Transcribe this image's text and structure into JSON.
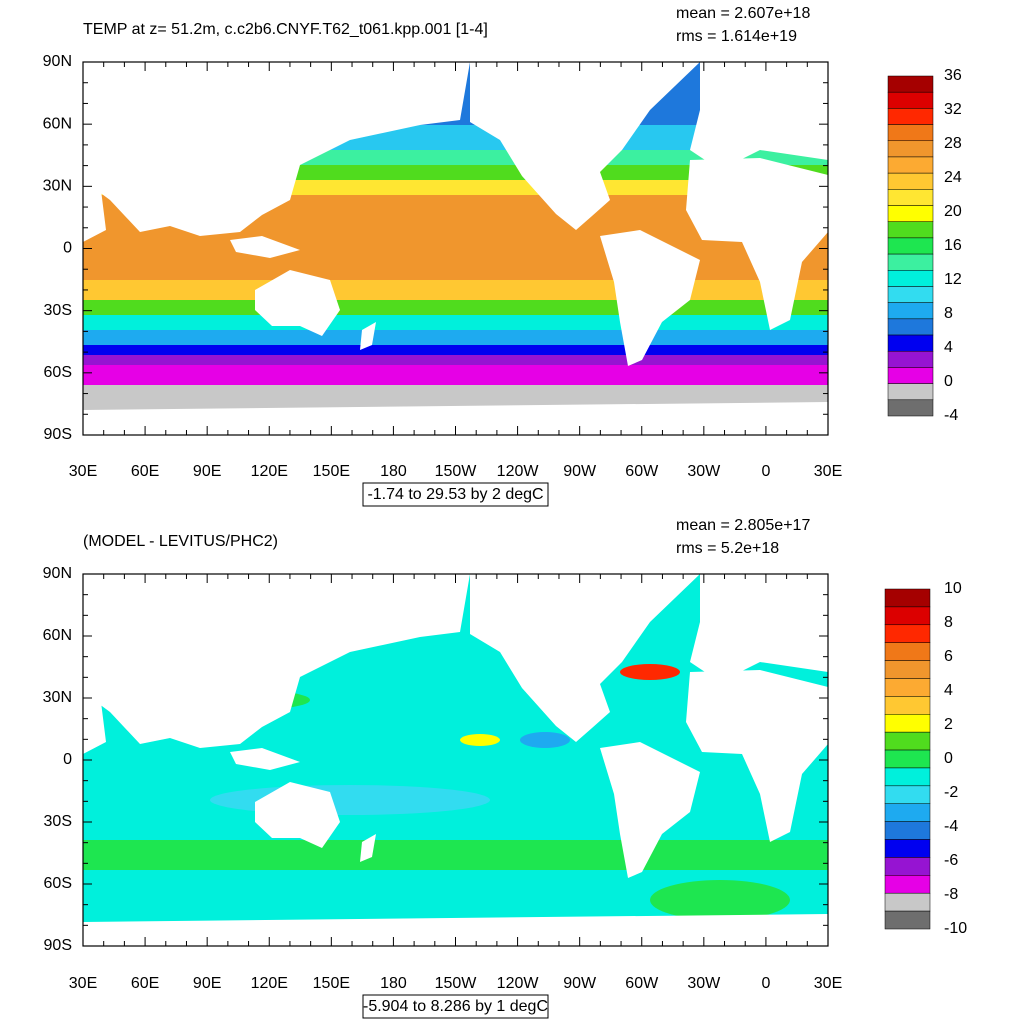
{
  "panels": [
    {
      "title": "TEMP at z=  51.2m, c.c2b6.CNYF.T62_t061.kpp.001 [1-4]",
      "mean": "mean = 2.607e+18",
      "rms": "rms = 1.614e+19",
      "lat_labels": [
        "90N",
        "60N",
        "30N",
        "0",
        "30S",
        "60S",
        "90S"
      ],
      "lon_labels": [
        "30E",
        "60E",
        "90E",
        "120E",
        "150E",
        "180",
        "150W",
        "120W",
        "90W",
        "60W",
        "30W",
        "0",
        "30E"
      ],
      "info": "-1.74 to 29.53 by 2 degC",
      "colorbar": {
        "labels": [
          36,
          32,
          28,
          24,
          20,
          16,
          12,
          8,
          4,
          0,
          -4
        ],
        "colors": [
          "#a50000",
          "#dc0000",
          "#ff2800",
          "#f07818",
          "#f0962d",
          "#fcaa32",
          "#ffc832",
          "#ffe632",
          "#ffff00",
          "#50dc1e",
          "#1ee650",
          "#3cf0a0",
          "#00f0dc",
          "#32dcf0",
          "#1eaaf0",
          "#1e78dc",
          "#0000f0",
          "#9614d2",
          "#e600e6",
          "#c8c8c8",
          "#6e6e6e"
        ]
      }
    },
    {
      "title": "(MODEL - LEVITUS/PHC2)",
      "mean": "mean = 2.805e+17",
      "rms": "rms = 5.2e+18",
      "lat_labels": [
        "90N",
        "60N",
        "30N",
        "0",
        "30S",
        "60S",
        "90S"
      ],
      "lon_labels": [
        "30E",
        "60E",
        "90E",
        "120E",
        "150E",
        "180",
        "150W",
        "120W",
        "90W",
        "60W",
        "30W",
        "0",
        "30E"
      ],
      "info": "-5.904 to 8.286 by 1 degC",
      "colorbar": {
        "labels": [
          10,
          8,
          6,
          4,
          2,
          0,
          -2,
          -4,
          -6,
          -8,
          -10
        ],
        "colors": [
          "#a50000",
          "#dc0000",
          "#ff2800",
          "#f07818",
          "#f0962d",
          "#fcaa32",
          "#ffc832",
          "#ffff00",
          "#50dc1e",
          "#1ee650",
          "#00f0dc",
          "#32dcf0",
          "#1eaaf0",
          "#1e78dc",
          "#0000f0",
          "#9614d2",
          "#e600e6",
          "#c8c8c8",
          "#6e6e6e"
        ]
      }
    }
  ]
}
